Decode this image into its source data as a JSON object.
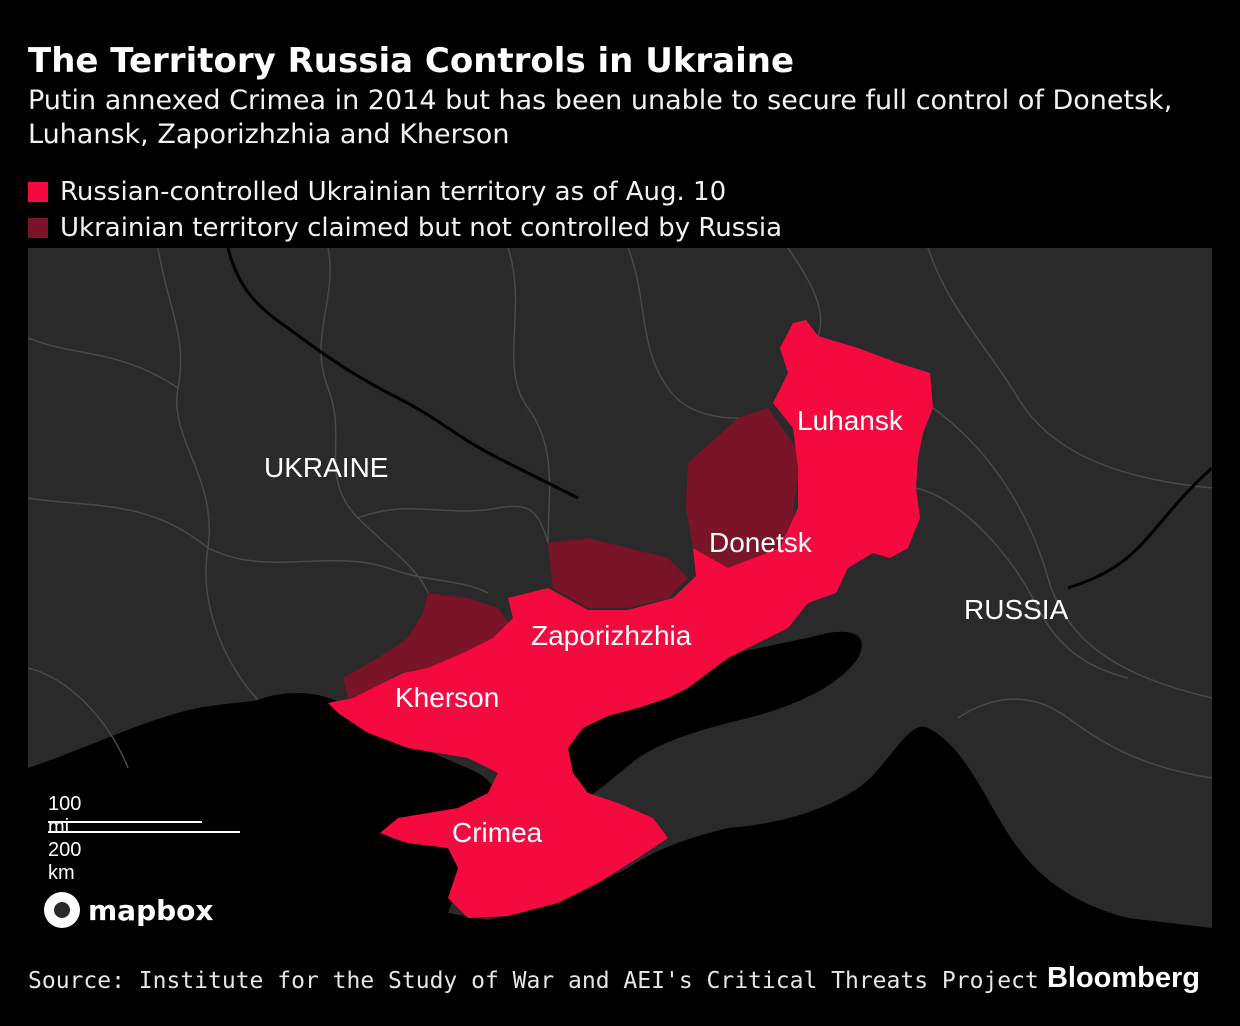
{
  "header": {
    "title": "The Territory Russia Controls in Ukraine",
    "subtitle": "Putin annexed Crimea in 2014 but has been unable to secure full control of Donetsk, Luhansk, Zaporizhzhia and Kherson"
  },
  "legend": [
    {
      "label": "Russian-controlled Ukrainian territory as of Aug. 10",
      "color": "#f50a40"
    },
    {
      "label": "Ukrainian territory claimed but not controlled by Russia",
      "color": "#7a1428"
    }
  ],
  "map": {
    "land_color": "#2a2a2a",
    "water_color": "#000000",
    "border_color": "#4a4a4a",
    "countries": {
      "ukraine": "UKRAINE",
      "russia": "RUSSIA"
    },
    "regions": {
      "luhansk": "Luhansk",
      "donetsk": "Donetsk",
      "zaporizhzhia": "Zaporizhzhia",
      "kherson": "Kherson",
      "crimea": "Crimea"
    },
    "scale": {
      "miles": "100 mi",
      "km": "200 km"
    },
    "attribution": "mapbox"
  },
  "footer": {
    "source": "Source: Institute for the Study of War and AEI's Critical Threats Project",
    "brand": "Bloomberg"
  }
}
